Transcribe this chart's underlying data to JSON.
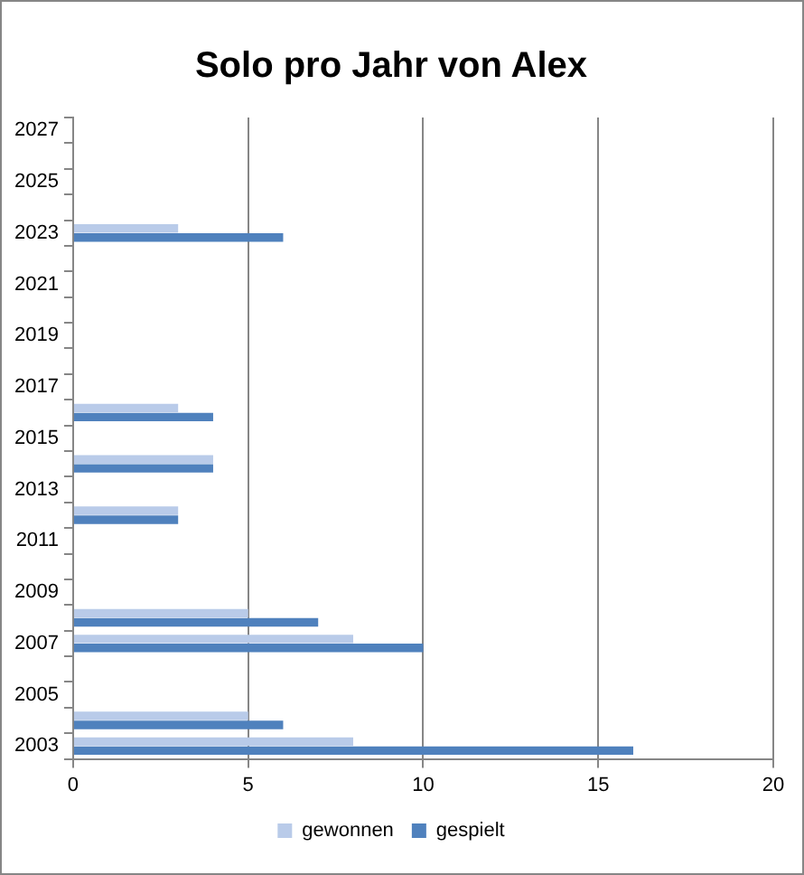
{
  "chart_data": {
    "type": "bar",
    "orientation": "horizontal",
    "title": "Solo pro Jahr von Alex",
    "categories": [
      "2027",
      null,
      "2025",
      null,
      "2023",
      null,
      "2021",
      null,
      "2019",
      null,
      "2017",
      null,
      "2015",
      null,
      "2013",
      null,
      "2011",
      null,
      "2009",
      null,
      "2007",
      null,
      "2005",
      null,
      "2003"
    ],
    "series": [
      {
        "name": "gewonnen",
        "color": "#b9cbe9",
        "values": [
          null,
          null,
          null,
          null,
          3,
          null,
          null,
          null,
          null,
          null,
          null,
          3,
          null,
          4,
          null,
          3,
          null,
          null,
          null,
          5,
          8,
          null,
          null,
          5,
          8
        ]
      },
      {
        "name": "gespielt",
        "color": "#4f81bd",
        "values": [
          null,
          null,
          null,
          null,
          6,
          null,
          null,
          null,
          null,
          null,
          null,
          4,
          null,
          4,
          null,
          3,
          null,
          null,
          null,
          7,
          10,
          null,
          null,
          6,
          16
        ]
      }
    ],
    "xlim": [
      0,
      20
    ],
    "xticks": [
      0,
      5,
      10,
      15,
      20
    ],
    "grid": "x",
    "legend": "bottom"
  }
}
